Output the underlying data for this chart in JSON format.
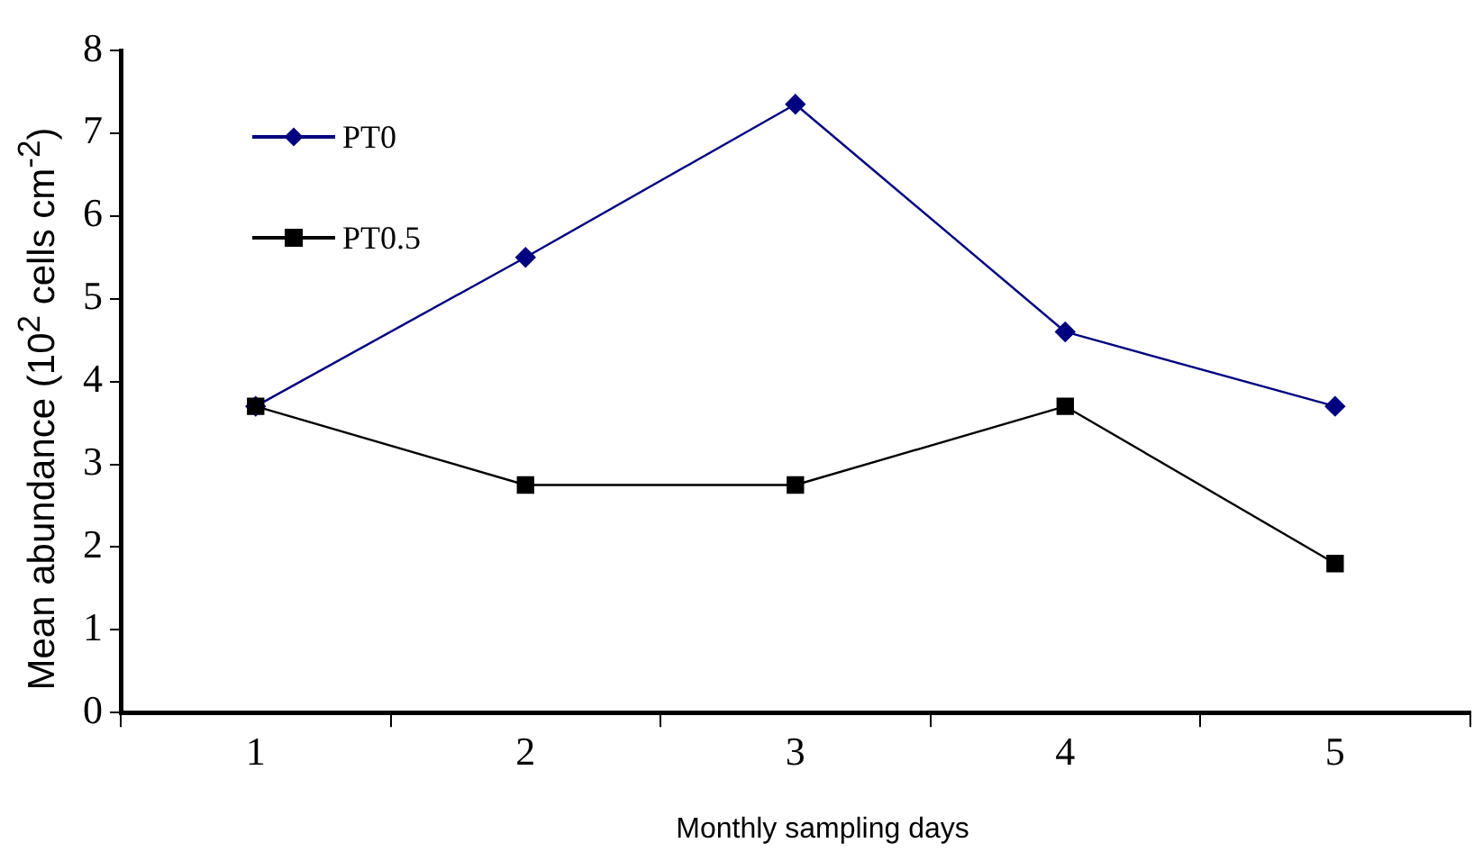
{
  "chart_data": {
    "type": "line",
    "xlabel": "Monthly sampling days",
    "ylabel": "Mean abundance (10$^{2}$ cells cm$^{-2}$)",
    "categories": [
      "1",
      "2",
      "3",
      "4",
      "5"
    ],
    "series": [
      {
        "name": "PT0",
        "color": "#000080",
        "marker": "diamond",
        "values": [
          3.7,
          5.5,
          7.35,
          4.6,
          3.7
        ]
      },
      {
        "name": "PT0.5",
        "color": "#000000",
        "marker": "square",
        "values": [
          3.7,
          2.75,
          2.75,
          3.7,
          1.8
        ]
      }
    ],
    "ylim": [
      0,
      8
    ],
    "yticks": [
      0,
      1,
      2,
      3,
      4,
      5,
      6,
      7,
      8
    ],
    "grid": false,
    "legend": "top left",
    "line_style": "solid"
  }
}
